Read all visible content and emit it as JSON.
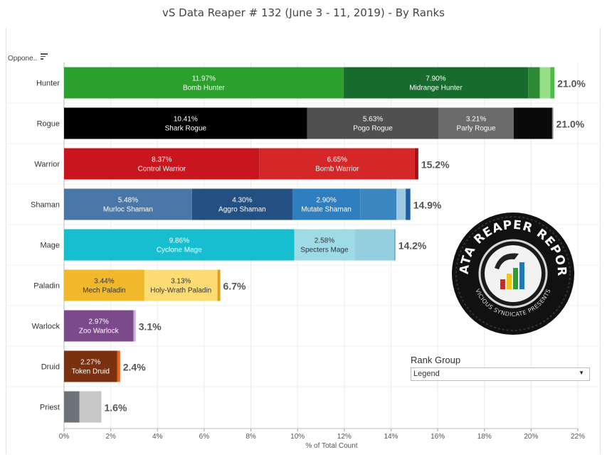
{
  "title": "vS Data Reaper #  132 (June 3 - 11, 2019) - By Ranks",
  "row_header": "Oppone..",
  "rank_group": {
    "label": "Rank Group",
    "value": "Legend"
  },
  "logo": {
    "text_top": "DATA REAPER REPORT",
    "text_bottom": "VICIOUS SYNDICATE PRESENTS"
  },
  "colors": {
    "bar_label_dark": "#333333",
    "bar_label_light": "#ffffff"
  },
  "chart_data": {
    "type": "bar",
    "orientation": "horizontal",
    "stacked": true,
    "title": "vS Data Reaper #  132 (June 3 - 11, 2019) - By Ranks",
    "xlabel": "% of Total Count",
    "xlim": [
      0,
      22
    ],
    "x_ticks": [
      "0%",
      "2%",
      "4%",
      "6%",
      "8%",
      "10%",
      "12%",
      "14%",
      "16%",
      "18%",
      "20%",
      "22%"
    ],
    "grid": true,
    "categories": [
      {
        "name": "Hunter",
        "total_label": "21.0%",
        "segments": [
          {
            "value": 11.97,
            "pct": "11.97%",
            "name": "Bomb Hunter",
            "color": "#2ca02c"
          },
          {
            "value": 7.9,
            "pct": "7.90%",
            "name": "Midrange Hunter",
            "color": "#176b2d"
          },
          {
            "value": 0.5,
            "pct": "",
            "name": "",
            "color": "#2e8a34"
          },
          {
            "value": 0.45,
            "pct": "",
            "name": "",
            "color": "#98df8a"
          },
          {
            "value": 0.18,
            "pct": "",
            "name": "",
            "color": "#4cbb4c"
          }
        ]
      },
      {
        "name": "Rogue",
        "total_label": "21.0%",
        "segments": [
          {
            "value": 10.41,
            "pct": "10.41%",
            "name": "Shark Rogue",
            "color": "#000000"
          },
          {
            "value": 5.63,
            "pct": "5.63%",
            "name": "Pogo Rogue",
            "color": "#505050"
          },
          {
            "value": 3.21,
            "pct": "3.21%",
            "name": "Parly Rogue",
            "color": "#6b6b6b"
          },
          {
            "value": 1.65,
            "pct": "",
            "name": "",
            "color": "#0a0a0a"
          },
          {
            "value": 0.05,
            "pct": "",
            "name": "",
            "color": "#8a8a8a"
          }
        ]
      },
      {
        "name": "Warrior",
        "total_label": "15.2%",
        "segments": [
          {
            "value": 8.37,
            "pct": "8.37%",
            "name": "Control Warrior",
            "color": "#c9151e"
          },
          {
            "value": 6.65,
            "pct": "6.65%",
            "name": "Bomb Warrior",
            "color": "#d62728"
          },
          {
            "value": 0.15,
            "pct": "",
            "name": "",
            "color": "#a50f15"
          }
        ]
      },
      {
        "name": "Shaman",
        "total_label": "14.9%",
        "segments": [
          {
            "value": 5.48,
            "pct": "5.48%",
            "name": "Murloc Shaman",
            "color": "#4a77a8"
          },
          {
            "value": 4.3,
            "pct": "4.30%",
            "name": "Aggro Shaman",
            "color": "#234f82"
          },
          {
            "value": 2.9,
            "pct": "2.90%",
            "name": "Mutate Shaman",
            "color": "#2f7fc0"
          },
          {
            "value": 1.55,
            "pct": "",
            "name": "",
            "color": "#3c86bf"
          },
          {
            "value": 0.4,
            "pct": "",
            "name": "",
            "color": "#9ecae1"
          },
          {
            "value": 0.2,
            "pct": "",
            "name": "",
            "color": "#1f5fa0"
          }
        ]
      },
      {
        "name": "Mage",
        "total_label": "14.2%",
        "segments": [
          {
            "value": 9.86,
            "pct": "9.86%",
            "name": "Cyclone Mage",
            "color": "#17becf"
          },
          {
            "value": 2.58,
            "pct": "2.58%",
            "name": "Specters Mage",
            "color": "#9fdbe7",
            "label_dark": true
          },
          {
            "value": 1.7,
            "pct": "",
            "name": "",
            "color": "#94cfe0"
          },
          {
            "value": 0.05,
            "pct": "",
            "name": "",
            "color": "#5aa9c7"
          }
        ]
      },
      {
        "name": "Paladin",
        "total_label": "6.7%",
        "segments": [
          {
            "value": 3.44,
            "pct": "3.44%",
            "name": "Mech Paladin",
            "color": "#f0b82a",
            "label_dark": true
          },
          {
            "value": 3.13,
            "pct": "3.13%",
            "name": "Holy-Wrath Paladin",
            "color": "#ffdc73",
            "label_dark": true
          },
          {
            "value": 0.12,
            "pct": "",
            "name": "",
            "color": "#e89a1a"
          }
        ]
      },
      {
        "name": "Warlock",
        "total_label": "3.1%",
        "segments": [
          {
            "value": 2.97,
            "pct": "2.97%",
            "name": "Zoo Warlock",
            "color": "#7b4a8b"
          },
          {
            "value": 0.1,
            "pct": "",
            "name": "",
            "color": "#c5b0d5"
          }
        ]
      },
      {
        "name": "Druid",
        "total_label": "2.4%",
        "segments": [
          {
            "value": 2.27,
            "pct": "2.27%",
            "name": "Token Druid",
            "color": "#7a3110"
          },
          {
            "value": 0.13,
            "pct": "",
            "name": "",
            "color": "#e8641b"
          }
        ]
      },
      {
        "name": "Priest",
        "total_label": "1.6%",
        "segments": [
          {
            "value": 0.66,
            "pct": "",
            "name": "",
            "color": "#6e7378"
          },
          {
            "value": 0.94,
            "pct": "",
            "name": "",
            "color": "#c7c7c7"
          }
        ]
      }
    ]
  }
}
